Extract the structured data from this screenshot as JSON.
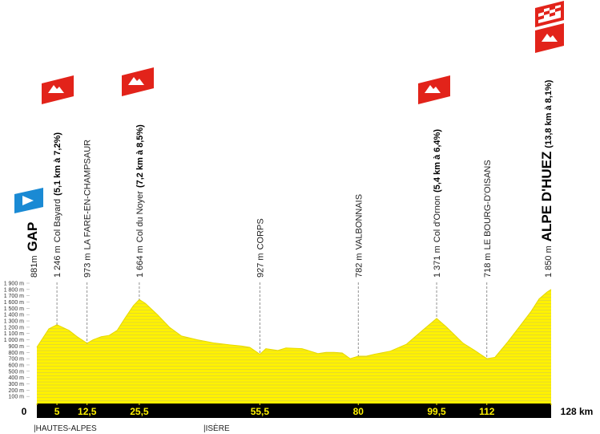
{
  "chart_data": {
    "type": "area",
    "color": "#fff200",
    "x": [
      0,
      3,
      5,
      8,
      10,
      12.5,
      14,
      16,
      18,
      20,
      22,
      24,
      25.5,
      27,
      30,
      33,
      36,
      40,
      44,
      48,
      51,
      53,
      55.5,
      57,
      60,
      62,
      66,
      70,
      72,
      74,
      76,
      78,
      80,
      82,
      84,
      88,
      92,
      96,
      99.5,
      102,
      106,
      109,
      112,
      114,
      117,
      120,
      123,
      125,
      127,
      128
    ],
    "values": [
      881,
      1175,
      1240,
      1150,
      1050,
      945,
      1000,
      1050,
      1070,
      1150,
      1350,
      1540,
      1640,
      1580,
      1400,
      1200,
      1060,
      1000,
      950,
      920,
      900,
      880,
      770,
      860,
      830,
      870,
      860,
      780,
      800,
      800,
      790,
      700,
      740,
      740,
      770,
      820,
      930,
      1150,
      1340,
      1200,
      950,
      830,
      700,
      720,
      950,
      1200,
      1450,
      1650,
      1760,
      1800
    ],
    "xlim": [
      0,
      128
    ],
    "ylim": [
      0,
      1900
    ],
    "xticks": [
      0,
      5,
      {
        "value": 12.5,
        "label": "12,5"
      },
      {
        "value": 25.5,
        "label": "25,5"
      },
      {
        "value": 55.5,
        "label": "55,5"
      },
      80,
      {
        "value": 99.5,
        "label": "99,5"
      },
      112,
      {
        "value": 128,
        "label": "128 km"
      }
    ],
    "yticks": [
      {
        "value": 100,
        "label": "100 m"
      },
      {
        "value": 200,
        "label": "200 m"
      },
      {
        "value": 300,
        "label": "300 m"
      },
      {
        "value": 400,
        "label": "400 m"
      },
      {
        "value": 500,
        "label": "500 m"
      },
      {
        "value": 600,
        "label": "600 m"
      },
      {
        "value": 700,
        "label": "700 m"
      },
      {
        "value": 800,
        "label": "800 m"
      },
      {
        "value": 900,
        "label": "900 m"
      },
      {
        "value": 1000,
        "label": "1 000 m"
      },
      {
        "value": 1100,
        "label": "1 100 m"
      },
      {
        "value": 1200,
        "label": "1 200 m"
      },
      {
        "value": 1300,
        "label": "1 300 m"
      },
      {
        "value": 1400,
        "label": "1 400 m"
      },
      {
        "value": 1500,
        "label": "1 500 m"
      },
      {
        "value": 1600,
        "label": "1 600 m"
      },
      {
        "value": 1700,
        "label": "1 700 m"
      },
      {
        "value": 1800,
        "label": "1 800 m"
      },
      {
        "value": 1900,
        "label": "1 900 m"
      }
    ],
    "waypoints": [
      {
        "altitude": "881m",
        "name": "GAP"
      },
      {
        "altitude": "1 246 m",
        "name": "Col Bayard",
        "climb": "(5,1 km à 7,2%)"
      },
      {
        "altitude": "973 m",
        "name": "LA FARE-EN-CHAMPSAUR"
      },
      {
        "altitude": "1 664 m",
        "name": "Col du Noyer",
        "climb": "(7,2 km à 8,5%)"
      },
      {
        "altitude": "927 m",
        "name": "CORPS"
      },
      {
        "altitude": "782 m",
        "name": "VALBONNAIS"
      },
      {
        "altitude": "1 371 m",
        "name": "Col d'Ornon",
        "climb": "(5,4 km à 6,4%)"
      },
      {
        "altitude": "718 m",
        "name": "LE BOURG-D'OISANS"
      },
      {
        "altitude": "1 850 m",
        "name": "ALPE D'HUEZ",
        "climb": "(13,8 km à 8,1%)"
      }
    ],
    "regions": [
      "|HAUTES-ALPES",
      "|ISÈRE"
    ]
  }
}
